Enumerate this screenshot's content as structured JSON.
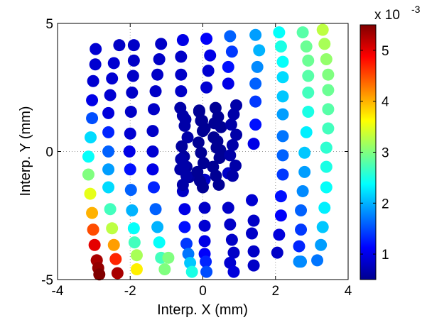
{
  "chart_data": {
    "type": "scatter",
    "xlabel": "Interp. X (mm)",
    "ylabel": "Interp. Y (mm)",
    "xlim": [
      -4,
      4
    ],
    "ylim": [
      -5,
      5
    ],
    "xticks": [
      "-4",
      "-2",
      "0",
      "2",
      "4"
    ],
    "yticks": [
      "-5",
      "0",
      "5"
    ],
    "grid": "dotted lines at x=0, y=0 and interior ticks",
    "colorbar": {
      "colormap": "jet",
      "range": [
        0.0005,
        0.0055
      ],
      "ticks": [
        "1",
        "2",
        "3",
        "4",
        "5"
      ],
      "multiplier": "x 10",
      "exponent": "-3"
    },
    "series": [
      {
        "x": [
          -2.95,
          -2.96,
          -3.02,
          -3.05,
          -3.05,
          -3.09,
          -3.15,
          -3.15,
          -3.1,
          -3.05,
          -3.02,
          -2.98,
          -2.92
        ],
        "y": [
          4.0,
          3.4,
          2.75,
          2.0,
          1.3,
          0.55,
          -0.2,
          -0.9,
          -1.65,
          -2.4,
          -3.05,
          -3.65,
          -4.25
        ],
        "v": [
          0.9,
          0.9,
          0.9,
          1.0,
          1.5,
          2.2,
          2.4,
          3.0,
          3.5,
          4.0,
          4.5,
          5.0,
          5.3
        ]
      },
      {
        "x": [
          -2.92,
          -2.88,
          -2.85
        ],
        "y": [
          -4.25,
          -4.55,
          -4.8
        ],
        "v": [
          5.3,
          5.4,
          5.5
        ]
      },
      {
        "x": [
          -2.3,
          -2.45,
          -2.5,
          -2.55,
          -2.6,
          -2.6,
          -2.6,
          -2.6,
          -2.6,
          -2.55,
          -2.5,
          -2.45,
          -2.4,
          -2.35
        ],
        "y": [
          4.15,
          3.45,
          2.85,
          2.2,
          1.5,
          0.75,
          0.0,
          -0.7,
          -1.4,
          -2.25,
          -3.0,
          -3.65,
          -4.2,
          -4.75
        ],
        "v": [
          0.85,
          0.9,
          0.9,
          0.9,
          0.95,
          1.3,
          1.6,
          1.9,
          2.2,
          2.7,
          3.3,
          4.1,
          4.7,
          5.3
        ]
      },
      {
        "x": [
          -1.9,
          -1.9,
          -1.92,
          -1.95,
          -1.98,
          -2.0,
          -2.02,
          -2.0,
          -1.98,
          -1.95,
          -1.9,
          -1.88,
          -1.82,
          -1.82
        ],
        "y": [
          4.15,
          3.55,
          2.95,
          2.3,
          1.55,
          0.7,
          0.0,
          -0.7,
          -1.5,
          -2.3,
          -3.0,
          -3.55,
          -4.05,
          -4.6
        ],
        "v": [
          0.85,
          0.85,
          0.85,
          0.85,
          0.85,
          0.9,
          1.0,
          1.2,
          1.6,
          2.0,
          2.4,
          2.7,
          3.2,
          3.7
        ]
      },
      {
        "x": [
          -1.15,
          -1.2,
          -1.25,
          -1.3,
          -1.35,
          -1.38,
          -1.38,
          -1.38,
          -1.35,
          -1.3,
          -1.25,
          -1.2,
          -1.15
        ],
        "y": [
          4.2,
          3.6,
          3.0,
          2.35,
          1.65,
          0.8,
          0.0,
          -0.7,
          -1.4,
          -2.25,
          -2.95,
          -3.55,
          -4.15
        ],
        "v": [
          0.85,
          0.85,
          0.85,
          0.85,
          0.85,
          0.85,
          0.9,
          1.0,
          1.3,
          1.6,
          2.0,
          2.4,
          2.7
        ]
      },
      {
        "x": [
          -1.05,
          -0.95
        ],
        "y": [
          -4.6,
          -4.15
        ],
        "v": [
          3.0,
          3.0
        ]
      },
      {
        "x": [
          -0.55,
          -0.6,
          -0.6,
          -0.6,
          -0.55,
          -0.5,
          -0.5,
          -0.45,
          -0.4,
          -0.35,
          -0.3
        ],
        "y": [
          4.35,
          3.7,
          3.0,
          2.35,
          -1.55,
          -2.25,
          -2.95,
          -3.6,
          -4.0,
          -4.35,
          -4.7
        ],
        "v": [
          1.0,
          0.85,
          0.85,
          0.85,
          0.85,
          1.0,
          1.2,
          1.4,
          1.7,
          2.1,
          2.5
        ]
      },
      {
        "x": [
          0.1,
          0.2,
          0.15,
          0.1,
          0.05,
          0.05,
          0.05,
          0.05,
          0.05,
          0.08,
          0.1
        ],
        "y": [
          4.4,
          3.75,
          3.15,
          2.5,
          -1.1,
          -2.2,
          -2.9,
          -3.5,
          -4.0,
          -4.3,
          -4.7
        ],
        "v": [
          1.1,
          1.0,
          0.9,
          0.9,
          0.85,
          0.85,
          0.9,
          1.0,
          1.1,
          1.3,
          1.5
        ]
      },
      {
        "x": [
          0.75,
          0.8,
          0.7,
          0.7,
          0.7,
          0.7,
          0.75,
          0.8,
          0.85,
          0.75,
          0.85
        ],
        "y": [
          4.5,
          3.9,
          3.3,
          2.65,
          -0.85,
          -2.2,
          -2.85,
          -3.45,
          -3.95,
          -4.35,
          -4.7
        ],
        "v": [
          1.6,
          1.4,
          1.2,
          1.0,
          0.85,
          0.85,
          0.85,
          0.85,
          0.85,
          0.9,
          0.95
        ]
      },
      {
        "x": [
          1.45,
          1.55,
          1.5,
          1.45,
          1.45,
          1.45,
          1.4,
          1.35,
          1.4,
          1.35,
          1.4,
          1.4
        ],
        "y": [
          4.55,
          3.95,
          3.3,
          2.65,
          1.95,
          1.05,
          0.3,
          -1.9,
          -2.7,
          -3.2,
          -3.9,
          -4.45
        ],
        "v": [
          1.9,
          2.0,
          1.8,
          1.6,
          1.4,
          1.2,
          1.0,
          0.9,
          0.85,
          0.85,
          0.85,
          0.85
        ]
      },
      {
        "x": [
          2.1,
          2.15,
          2.2,
          2.2,
          2.2,
          2.2,
          2.2,
          2.2,
          2.2,
          2.15,
          2.15,
          2.1,
          2.05
        ],
        "y": [
          4.65,
          4.1,
          3.5,
          2.9,
          2.15,
          1.45,
          0.6,
          -0.15,
          -0.9,
          -1.75,
          -2.5,
          -3.25,
          -3.95
        ],
        "v": [
          2.4,
          2.5,
          2.4,
          2.2,
          2.1,
          1.9,
          1.7,
          1.6,
          1.4,
          1.2,
          1.1,
          0.95,
          0.85
        ]
      },
      {
        "x": [
          2.75,
          2.85,
          2.9,
          2.9,
          2.9,
          2.9,
          2.85,
          2.8,
          2.8,
          2.75,
          2.7,
          2.7,
          2.65
        ],
        "y": [
          4.65,
          4.1,
          3.55,
          2.95,
          2.3,
          1.55,
          0.75,
          -0.05,
          -0.8,
          -1.55,
          -2.3,
          -3.05,
          -3.7
        ],
        "v": [
          2.8,
          2.9,
          2.9,
          2.8,
          2.7,
          2.5,
          2.3,
          2.1,
          1.9,
          1.8,
          1.6,
          1.4,
          1.3
        ]
      },
      {
        "x": [
          2.7,
          2.65
        ],
        "y": [
          -4.3,
          -4.3
        ],
        "v": [
          1.8,
          1.8
        ]
      },
      {
        "x": [
          3.3,
          3.35,
          3.4,
          3.45,
          3.45,
          3.45,
          3.45,
          3.4,
          3.4,
          3.4,
          3.35,
          3.3,
          3.25
        ],
        "y": [
          4.75,
          4.2,
          3.6,
          3.0,
          2.4,
          1.65,
          0.9,
          0.15,
          -0.6,
          -1.4,
          -2.2,
          -2.95,
          -3.65
        ],
        "v": [
          3.3,
          3.2,
          3.1,
          3.0,
          2.9,
          2.8,
          2.7,
          2.6,
          2.5,
          2.4,
          2.3,
          2.1,
          1.9
        ]
      },
      {
        "x": [
          3.15,
          -0.62,
          -0.55,
          -0.5,
          -0.42,
          -0.58,
          -0.52,
          -0.45,
          -0.38,
          -0.6,
          -0.52,
          -0.45,
          -0.62,
          -0.55,
          -0.48,
          -0.1,
          -0.05,
          0.0,
          -0.12,
          -0.05,
          0.02,
          -0.15,
          -0.08,
          0.0,
          -0.1,
          -0.02,
          0.05,
          0.35,
          0.42,
          0.5,
          0.3,
          0.38,
          0.46,
          0.28,
          0.36,
          0.44,
          0.32,
          0.4,
          0.48,
          0.92,
          0.85,
          0.78,
          0.92,
          0.82,
          0.75,
          0.9,
          0.82
        ],
        "y": [
          -4.25,
          1.7,
          1.4,
          1.0,
          0.55,
          0.2,
          -0.2,
          -0.6,
          -1.0,
          -0.3,
          -0.55,
          -0.95,
          -0.7,
          -1.3,
          1.25,
          1.6,
          1.2,
          0.8,
          0.35,
          -0.05,
          -0.45,
          -0.8,
          -1.15,
          -1.4,
          1.55,
          1.2,
          0.9,
          1.7,
          1.35,
          0.95,
          0.55,
          0.15,
          -0.25,
          -0.6,
          -0.95,
          -1.3,
          1.1,
          0.4,
          0.05,
          1.8,
          1.45,
          1.05,
          0.65,
          0.25,
          -0.15,
          -0.55,
          -0.95
        ],
        "v": [
          1.7,
          0.7,
          0.7,
          0.7,
          0.7,
          0.65,
          0.65,
          0.65,
          0.65,
          0.7,
          0.7,
          0.7,
          0.7,
          0.7,
          0.7,
          0.6,
          0.6,
          0.6,
          0.6,
          0.6,
          0.6,
          0.6,
          0.6,
          0.6,
          0.6,
          0.6,
          0.6,
          0.6,
          0.6,
          0.6,
          0.6,
          0.6,
          0.6,
          0.6,
          0.6,
          0.6,
          0.6,
          0.6,
          0.6,
          0.7,
          0.7,
          0.7,
          0.7,
          0.7,
          0.7,
          0.7,
          0.7
        ]
      }
    ]
  }
}
